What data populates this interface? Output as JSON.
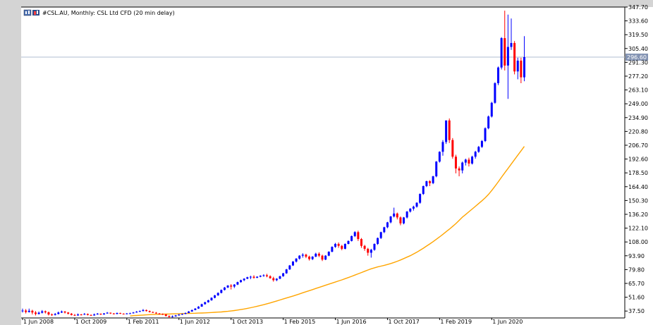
{
  "window": {
    "title": "#CSL.AU, Monthly:  CSL Ltd CFD (20 min delay)",
    "current_price_label": "296.60"
  },
  "colors": {
    "background": "#ffffff",
    "bull": "#0000ff",
    "bear": "#ff0000",
    "ma_line": "#ffa500",
    "price_line": "#b0bcd0",
    "price_label_bg": "#8393b3"
  },
  "icons": [
    "chart-window-icon"
  ],
  "chart_data": {
    "type": "candlestick",
    "title": "#CSL.AU, Monthly:  CSL Ltd CFD (20 min delay)",
    "ylim": [
      30.45,
      347.7
    ],
    "grid": false,
    "y_ticks": [
      "347.70",
      "333.60",
      "319.50",
      "305.40",
      "291.30",
      "277.20",
      "263.10",
      "249.00",
      "234.90",
      "220.80",
      "206.70",
      "192.60",
      "178.50",
      "164.40",
      "150.30",
      "136.20",
      "122.10",
      "108.00",
      "93.90",
      "79.80",
      "65.70",
      "51.60",
      "37.50"
    ],
    "x_ticks": [
      "1 Jun 2008",
      "1 Oct 2009",
      "1 Feb 2011",
      "1 Jun 2012",
      "1 Oct 2013",
      "1 Feb 2015",
      "1 Jun 2016",
      "1 Oct 2017",
      "1 Feb 2019",
      "1 Jun 2020"
    ],
    "current_price": 296.6,
    "series": [
      {
        "type": "candlestick",
        "close": [
          38.0,
          36.5,
          37.8,
          36.0,
          34.5,
          35.8,
          37.2,
          36.2,
          34.0,
          33.5,
          34.5,
          36.0,
          37.0,
          36.0,
          34.8,
          33.5,
          33.0,
          34.0,
          33.8,
          34.5,
          33.5,
          33.0,
          34.0,
          34.8,
          34.0,
          35.0,
          35.8,
          35.0,
          34.5,
          35.5,
          34.8,
          34.5,
          35.0,
          35.2,
          36.0,
          36.8,
          37.5,
          38.5,
          37.5,
          36.5,
          35.8,
          35.0,
          34.5,
          34.0,
          32.5,
          31.5,
          32.0,
          33.0,
          33.8,
          34.5,
          35.5,
          37.0,
          38.5,
          40.0,
          42.0,
          44.5,
          46.5,
          48.5,
          51.0,
          53.5,
          56.0,
          59.0,
          61.5,
          63.5,
          62.5,
          64.5,
          67.0,
          69.0,
          70.5,
          72.0,
          72.5,
          71.5,
          72.5,
          73.5,
          74.0,
          73.0,
          71.0,
          69.0,
          70.5,
          73.0,
          76.0,
          80.0,
          84.0,
          88.0,
          91.0,
          94.0,
          95.0,
          93.0,
          90.5,
          93.0,
          96.0,
          94.0,
          90.0,
          94.0,
          98.0,
          103.0,
          106.0,
          104.0,
          101.0,
          106.0,
          109.0,
          114.0,
          118.0,
          111.0,
          104.0,
          101.0,
          97.0,
          100.0,
          106.0,
          112.0,
          118.0,
          123.0,
          128.0,
          134.0,
          137.0,
          133.0,
          127.0,
          133.0,
          139.0,
          142.0,
          144.0,
          148.0,
          157.0,
          165.0,
          170.0,
          168.0,
          175.0,
          190.0,
          200.0,
          210.0,
          232.0,
          212.0,
          195.0,
          183.0,
          181.0,
          189.0,
          192.0,
          188.0,
          195.0,
          200.0,
          205.0,
          211.0,
          224.0,
          236.0,
          250.0,
          270.0,
          286.0,
          316.0,
          288.0,
          307.0,
          311.0,
          282.0,
          293.0,
          276.0,
          296.6
        ]
      },
      {
        "type": "line",
        "name": "",
        "values": [
          32.5,
          32.8,
          33.0,
          33.2,
          33.4,
          33.6,
          33.8,
          34.0,
          34.1,
          34.2,
          34.3,
          34.4,
          34.5,
          34.6,
          34.7,
          34.8,
          34.9,
          35.0,
          35.1,
          35.2,
          35.3,
          35.4,
          35.5,
          35.6,
          35.8,
          36.0,
          36.2,
          36.4,
          36.6,
          36.9,
          37.2,
          37.6,
          38.0,
          38.5,
          39.0,
          39.6,
          40.2,
          40.9,
          41.6,
          42.4,
          43.2,
          44.0,
          44.9,
          45.8,
          46.8,
          47.8,
          48.8,
          49.8,
          50.8,
          51.8,
          52.8,
          53.9,
          55.0,
          56.1,
          57.2,
          58.3,
          59.4,
          60.5,
          61.6,
          62.7,
          63.8,
          64.9,
          66.0,
          67.1,
          68.2,
          69.3,
          70.5,
          71.7,
          72.9,
          74.2,
          75.5,
          76.8,
          78.1,
          79.4,
          80.6,
          81.6,
          82.5,
          83.3,
          84.1,
          85.0,
          86.0,
          87.1,
          88.3,
          89.6,
          91.0,
          92.5,
          94.0,
          95.7,
          97.5,
          99.5,
          101.6,
          103.8,
          106.0,
          108.3,
          110.7,
          113.2,
          115.8,
          118.4,
          121.0,
          123.8,
          126.8,
          130.0,
          133.3,
          136.0,
          138.8,
          141.6,
          144.4,
          147.2,
          150.0,
          153.0,
          156.5,
          160.5,
          164.8,
          169.3,
          174.0,
          178.6,
          183.0,
          187.5,
          192.0,
          196.5,
          201.0,
          205.5
        ]
      }
    ],
    "ohlc": [
      [
        38.0,
        40.0,
        36.0,
        38.0
      ],
      [
        38.0,
        39.5,
        35.0,
        36.5
      ],
      [
        36.5,
        40.0,
        36.0,
        37.8
      ],
      [
        37.8,
        38.8,
        34.0,
        36.0
      ],
      [
        36.0,
        37.5,
        33.0,
        34.5
      ],
      [
        34.5,
        37.0,
        34.0,
        35.8
      ],
      [
        35.8,
        38.5,
        35.0,
        37.2
      ],
      [
        37.2,
        38.0,
        35.0,
        36.2
      ],
      [
        36.2,
        37.0,
        33.0,
        34.0
      ],
      [
        34.0,
        35.0,
        32.5,
        33.5
      ],
      [
        33.5,
        35.5,
        33.0,
        34.5
      ],
      [
        34.5,
        37.0,
        34.0,
        36.0
      ],
      [
        36.0,
        38.0,
        35.5,
        37.0
      ],
      [
        37.0,
        37.5,
        35.0,
        36.0
      ],
      [
        36.0,
        36.5,
        34.0,
        34.8
      ],
      [
        34.8,
        35.5,
        33.0,
        33.5
      ],
      [
        33.5,
        34.5,
        32.5,
        33.0
      ],
      [
        33.0,
        35.0,
        32.8,
        34.0
      ],
      [
        34.0,
        34.5,
        33.0,
        33.8
      ],
      [
        33.8,
        35.5,
        33.5,
        34.5
      ],
      [
        34.5,
        35.0,
        33.0,
        33.5
      ],
      [
        33.5,
        34.0,
        32.5,
        33.0
      ],
      [
        33.0,
        35.0,
        32.8,
        34.0
      ],
      [
        34.0,
        35.5,
        33.8,
        34.8
      ],
      [
        34.8,
        35.0,
        33.5,
        34.0
      ],
      [
        34.0,
        35.5,
        33.8,
        35.0
      ],
      [
        35.0,
        36.5,
        34.8,
        35.8
      ],
      [
        35.8,
        36.0,
        34.5,
        35.0
      ],
      [
        35.0,
        35.5,
        34.0,
        34.5
      ],
      [
        34.5,
        36.0,
        34.3,
        35.5
      ],
      [
        35.5,
        35.8,
        34.5,
        34.8
      ],
      [
        34.8,
        35.2,
        34.0,
        34.5
      ],
      [
        34.5,
        35.5,
        34.3,
        35.0
      ],
      [
        35.0,
        35.8,
        34.8,
        35.2
      ],
      [
        35.2,
        36.5,
        35.0,
        36.0
      ],
      [
        36.0,
        37.5,
        35.8,
        36.8
      ],
      [
        36.8,
        38.0,
        36.5,
        37.5
      ],
      [
        37.5,
        39.5,
        37.2,
        38.5
      ],
      [
        38.5,
        39.0,
        37.0,
        37.5
      ],
      [
        37.5,
        38.0,
        36.0,
        36.5
      ],
      [
        36.5,
        37.0,
        35.5,
        35.8
      ],
      [
        35.8,
        36.5,
        34.8,
        35.0
      ],
      [
        35.0,
        35.5,
        34.0,
        34.5
      ],
      [
        34.5,
        35.0,
        33.5,
        34.0
      ],
      [
        34.0,
        34.5,
        32.0,
        32.5
      ],
      [
        32.5,
        33.0,
        30.5,
        31.5
      ],
      [
        31.5,
        33.0,
        31.0,
        32.0
      ],
      [
        32.0,
        33.5,
        31.8,
        33.0
      ],
      [
        33.0,
        34.5,
        32.8,
        33.8
      ],
      [
        33.8,
        35.0,
        33.5,
        34.5
      ],
      [
        34.5,
        36.0,
        34.3,
        35.5
      ],
      [
        35.5,
        37.5,
        35.3,
        37.0
      ],
      [
        37.0,
        39.0,
        36.8,
        38.5
      ],
      [
        38.5,
        40.5,
        38.3,
        40.0
      ],
      [
        40.0,
        42.5,
        39.8,
        42.0
      ],
      [
        42.0,
        45.0,
        41.8,
        44.5
      ],
      [
        44.5,
        47.0,
        44.0,
        46.5
      ],
      [
        46.5,
        49.0,
        46.0,
        48.5
      ],
      [
        48.5,
        51.5,
        48.0,
        51.0
      ],
      [
        51.0,
        54.0,
        50.5,
        53.5
      ],
      [
        53.5,
        56.5,
        53.0,
        56.0
      ],
      [
        56.0,
        59.5,
        55.5,
        59.0
      ],
      [
        59.0,
        62.0,
        58.5,
        61.5
      ],
      [
        61.5,
        64.0,
        61.0,
        63.5
      ],
      [
        63.5,
        65.0,
        59.5,
        62.5
      ],
      [
        62.5,
        65.0,
        61.0,
        64.5
      ],
      [
        64.5,
        67.5,
        64.0,
        67.0
      ],
      [
        67.0,
        69.5,
        66.5,
        69.0
      ],
      [
        69.0,
        71.0,
        68.0,
        70.5
      ],
      [
        70.5,
        72.5,
        70.0,
        72.0
      ],
      [
        72.0,
        73.5,
        70.0,
        72.5
      ],
      [
        72.5,
        74.0,
        70.5,
        71.5
      ],
      [
        71.5,
        73.0,
        71.0,
        72.5
      ],
      [
        72.5,
        74.0,
        72.0,
        73.5
      ],
      [
        73.5,
        75.0,
        72.5,
        74.0
      ],
      [
        74.0,
        75.5,
        72.0,
        73.0
      ],
      [
        73.0,
        74.0,
        70.5,
        71.0
      ],
      [
        71.0,
        72.5,
        67.5,
        69.0
      ],
      [
        69.0,
        71.0,
        68.0,
        70.5
      ],
      [
        70.5,
        73.5,
        70.0,
        73.0
      ],
      [
        73.0,
        76.5,
        72.5,
        76.0
      ],
      [
        76.0,
        80.5,
        75.5,
        80.0
      ],
      [
        80.0,
        84.5,
        79.5,
        84.0
      ],
      [
        84.0,
        88.5,
        83.5,
        88.0
      ],
      [
        88.0,
        91.5,
        87.0,
        91.0
      ],
      [
        91.0,
        94.5,
        90.0,
        94.0
      ],
      [
        94.0,
        96.5,
        92.0,
        95.0
      ],
      [
        95.0,
        96.0,
        91.5,
        93.0
      ],
      [
        93.0,
        94.0,
        89.0,
        90.5
      ],
      [
        90.5,
        93.5,
        89.5,
        93.0
      ],
      [
        93.0,
        97.0,
        92.5,
        96.0
      ],
      [
        96.0,
        97.5,
        92.5,
        94.0
      ],
      [
        94.0,
        95.0,
        88.5,
        90.0
      ],
      [
        90.0,
        94.5,
        89.5,
        94.0
      ],
      [
        94.0,
        98.5,
        93.5,
        98.0
      ],
      [
        98.0,
        103.5,
        97.5,
        103.0
      ],
      [
        103.0,
        107.0,
        102.0,
        106.0
      ],
      [
        106.0,
        107.5,
        102.0,
        104.0
      ],
      [
        104.0,
        105.0,
        99.5,
        101.0
      ],
      [
        101.0,
        106.5,
        100.5,
        106.0
      ],
      [
        106.0,
        109.5,
        105.5,
        109.0
      ],
      [
        109.0,
        114.5,
        108.5,
        114.0
      ],
      [
        114.0,
        119.0,
        113.0,
        118.0
      ],
      [
        118.0,
        119.5,
        109.0,
        111.0
      ],
      [
        111.0,
        112.0,
        102.0,
        104.0
      ],
      [
        104.0,
        105.0,
        99.0,
        101.0
      ],
      [
        101.0,
        102.0,
        94.0,
        97.0
      ],
      [
        97.0,
        101.0,
        92.0,
        100.0
      ],
      [
        100.0,
        106.5,
        99.0,
        106.0
      ],
      [
        106.0,
        112.5,
        105.0,
        112.0
      ],
      [
        112.0,
        118.5,
        111.0,
        118.0
      ],
      [
        118.0,
        123.5,
        117.0,
        123.0
      ],
      [
        123.0,
        128.5,
        122.0,
        128.0
      ],
      [
        128.0,
        134.5,
        127.0,
        134.0
      ],
      [
        134.0,
        143.0,
        133.0,
        137.0
      ],
      [
        137.0,
        138.0,
        131.0,
        133.0
      ],
      [
        133.0,
        134.0,
        125.0,
        127.0
      ],
      [
        127.0,
        133.5,
        126.0,
        133.0
      ],
      [
        133.0,
        139.5,
        132.0,
        139.0
      ],
      [
        139.0,
        142.5,
        138.0,
        142.0
      ],
      [
        142.0,
        145.0,
        140.0,
        144.0
      ],
      [
        144.0,
        148.5,
        143.0,
        148.0
      ],
      [
        148.0,
        157.5,
        147.0,
        157.0
      ],
      [
        157.0,
        165.5,
        156.0,
        165.0
      ],
      [
        165.0,
        170.5,
        164.0,
        170.0
      ],
      [
        170.0,
        171.0,
        165.0,
        168.0
      ],
      [
        168.0,
        175.5,
        167.0,
        175.0
      ],
      [
        175.0,
        190.5,
        174.0,
        190.0
      ],
      [
        190.0,
        200.5,
        189.0,
        200.0
      ],
      [
        200.0,
        212.0,
        196.0,
        210.0
      ],
      [
        210.0,
        232.0,
        208.0,
        232.0
      ],
      [
        232.0,
        234.0,
        209.0,
        212.0
      ],
      [
        212.0,
        214.0,
        193.0,
        195.0
      ],
      [
        195.0,
        197.0,
        178.0,
        183.0
      ],
      [
        183.0,
        185.0,
        175.0,
        181.0
      ],
      [
        181.0,
        190.0,
        178.0,
        189.0
      ],
      [
        189.0,
        193.0,
        186.0,
        192.0
      ],
      [
        192.0,
        194.0,
        185.0,
        188.0
      ],
      [
        188.0,
        196.0,
        187.0,
        195.0
      ],
      [
        195.0,
        201.0,
        193.0,
        200.0
      ],
      [
        200.0,
        206.0,
        199.0,
        205.0
      ],
      [
        205.0,
        212.0,
        204.0,
        211.0
      ],
      [
        211.0,
        225.0,
        210.0,
        224.0
      ],
      [
        224.0,
        237.0,
        223.0,
        236.0
      ],
      [
        236.0,
        251.0,
        235.0,
        250.0
      ],
      [
        250.0,
        271.0,
        249.0,
        270.0
      ],
      [
        270.0,
        287.0,
        268.0,
        286.0
      ],
      [
        286.0,
        317.0,
        284.0,
        316.0
      ],
      [
        316.0,
        344.0,
        283.0,
        288.0
      ],
      [
        288.0,
        340.0,
        254.0,
        307.0
      ],
      [
        307.0,
        336.0,
        304.0,
        311.0
      ],
      [
        311.0,
        313.0,
        279.0,
        282.0
      ],
      [
        282.0,
        296.0,
        274.0,
        293.0
      ],
      [
        293.0,
        296.0,
        270.0,
        276.0
      ],
      [
        276.0,
        318.0,
        272.0,
        296.6
      ]
    ]
  }
}
